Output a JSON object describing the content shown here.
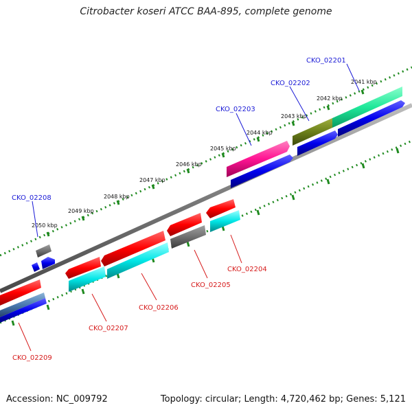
{
  "title": "Citrobacter koseri ATCC BAA-895, complete genome",
  "footer": {
    "accession": "Accession: NC_009792",
    "summary": "Topology: circular; Length: 4,720,462 bp; Genes: 5,121"
  },
  "colors": {
    "label_top": "#1a1ad6",
    "label_bottom": "#d61a1a",
    "backbone": "#8c8c8c",
    "tick": "#1f8a1f"
  },
  "scale_labels": [
    "2041 kbp",
    "2042 kbp",
    "2043 kbp",
    "2044 kbp",
    "2045 kbp",
    "2046 kbp",
    "2047 kbp",
    "2048 kbp",
    "2049 kbp",
    "2050 kbp"
  ],
  "gene_labels_top": [
    "CKO_02201",
    "CKO_02202",
    "CKO_02203",
    "CKO_02208"
  ],
  "gene_labels_bottom": [
    "CKO_02204",
    "CKO_02205",
    "CKO_02206",
    "CKO_02207",
    "CKO_02209"
  ]
}
